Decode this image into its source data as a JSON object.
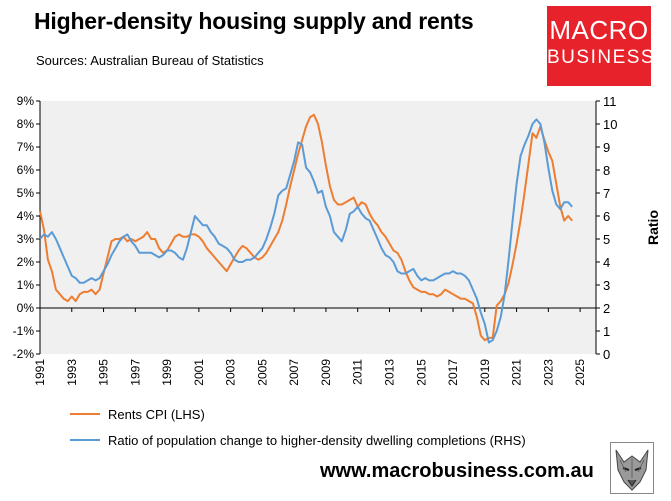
{
  "header": {
    "title": "Higher-density housing supply and rents",
    "subtitle": "Sources: Australian Bureau of Statistics"
  },
  "logo": {
    "line1": "MACRO",
    "line2": "BUSINESS",
    "color": "#e8222b"
  },
  "footer": {
    "url": "www.macrobusiness.com.au"
  },
  "chart_data": {
    "type": "line",
    "title": "Higher-density housing supply and rents",
    "xlabel": "",
    "ylabel_left": "",
    "ylabel_right": "Ratio",
    "xlim": [
      1991,
      2026
    ],
    "ylim_left": [
      -2,
      9
    ],
    "ylim_right": [
      0,
      11
    ],
    "x_ticks": [
      1991,
      1993,
      1995,
      1997,
      1999,
      2001,
      2003,
      2005,
      2007,
      2009,
      2011,
      2013,
      2015,
      2017,
      2019,
      2021,
      2023,
      2025
    ],
    "y_ticks_left": [
      "-2%",
      "-1%",
      "0%",
      "1%",
      "2%",
      "3%",
      "4%",
      "5%",
      "6%",
      "7%",
      "8%",
      "9%"
    ],
    "y_ticks_right": [
      "0",
      "1",
      "2",
      "3",
      "4",
      "5",
      "6",
      "7",
      "8",
      "9",
      "10",
      "11"
    ],
    "grid": "off",
    "legend_position": "bottom",
    "plot_background": "#f0f0f0",
    "series": [
      {
        "name": "Rents CPI (LHS)",
        "axis": "left",
        "color": "#ed7d31",
        "points": [
          [
            1991.0,
            4.2
          ],
          [
            1991.25,
            3.4
          ],
          [
            1991.5,
            2.1
          ],
          [
            1991.75,
            1.6
          ],
          [
            1992.0,
            0.8
          ],
          [
            1992.25,
            0.6
          ],
          [
            1992.5,
            0.4
          ],
          [
            1992.75,
            0.3
          ],
          [
            1993.0,
            0.5
          ],
          [
            1993.25,
            0.3
          ],
          [
            1993.5,
            0.6
          ],
          [
            1993.75,
            0.7
          ],
          [
            1994.0,
            0.7
          ],
          [
            1994.25,
            0.8
          ],
          [
            1994.5,
            0.6
          ],
          [
            1994.75,
            0.8
          ],
          [
            1995.0,
            1.5
          ],
          [
            1995.25,
            2.2
          ],
          [
            1995.5,
            2.9
          ],
          [
            1995.75,
            3.0
          ],
          [
            1996.0,
            3.0
          ],
          [
            1996.25,
            3.1
          ],
          [
            1996.5,
            2.9
          ],
          [
            1996.75,
            3.0
          ],
          [
            1997.0,
            2.9
          ],
          [
            1997.25,
            3.0
          ],
          [
            1997.5,
            3.1
          ],
          [
            1997.75,
            3.3
          ],
          [
            1998.0,
            3.0
          ],
          [
            1998.25,
            3.0
          ],
          [
            1998.5,
            2.6
          ],
          [
            1998.75,
            2.4
          ],
          [
            1999.0,
            2.5
          ],
          [
            1999.25,
            2.8
          ],
          [
            1999.5,
            3.1
          ],
          [
            1999.75,
            3.2
          ],
          [
            2000.0,
            3.1
          ],
          [
            2000.25,
            3.1
          ],
          [
            2000.5,
            3.2
          ],
          [
            2000.75,
            3.2
          ],
          [
            2001.0,
            3.1
          ],
          [
            2001.25,
            2.9
          ],
          [
            2001.5,
            2.6
          ],
          [
            2001.75,
            2.4
          ],
          [
            2002.0,
            2.2
          ],
          [
            2002.25,
            2.0
          ],
          [
            2002.5,
            1.8
          ],
          [
            2002.75,
            1.6
          ],
          [
            2003.0,
            1.9
          ],
          [
            2003.25,
            2.2
          ],
          [
            2003.5,
            2.5
          ],
          [
            2003.75,
            2.7
          ],
          [
            2004.0,
            2.6
          ],
          [
            2004.25,
            2.4
          ],
          [
            2004.5,
            2.2
          ],
          [
            2004.75,
            2.1
          ],
          [
            2005.0,
            2.2
          ],
          [
            2005.25,
            2.4
          ],
          [
            2005.5,
            2.7
          ],
          [
            2005.75,
            3.0
          ],
          [
            2006.0,
            3.3
          ],
          [
            2006.25,
            3.8
          ],
          [
            2006.5,
            4.5
          ],
          [
            2006.75,
            5.3
          ],
          [
            2007.0,
            6.0
          ],
          [
            2007.25,
            6.7
          ],
          [
            2007.5,
            7.3
          ],
          [
            2007.75,
            7.9
          ],
          [
            2008.0,
            8.3
          ],
          [
            2008.25,
            8.4
          ],
          [
            2008.5,
            8.0
          ],
          [
            2008.75,
            7.2
          ],
          [
            2009.0,
            6.2
          ],
          [
            2009.25,
            5.3
          ],
          [
            2009.5,
            4.7
          ],
          [
            2009.75,
            4.5
          ],
          [
            2010.0,
            4.5
          ],
          [
            2010.25,
            4.6
          ],
          [
            2010.5,
            4.7
          ],
          [
            2010.75,
            4.8
          ],
          [
            2011.0,
            4.4
          ],
          [
            2011.25,
            4.6
          ],
          [
            2011.5,
            4.5
          ],
          [
            2011.75,
            4.1
          ],
          [
            2012.0,
            3.8
          ],
          [
            2012.25,
            3.6
          ],
          [
            2012.5,
            3.3
          ],
          [
            2012.75,
            3.1
          ],
          [
            2013.0,
            2.8
          ],
          [
            2013.25,
            2.5
          ],
          [
            2013.5,
            2.4
          ],
          [
            2013.75,
            2.1
          ],
          [
            2014.0,
            1.6
          ],
          [
            2014.25,
            1.2
          ],
          [
            2014.5,
            0.9
          ],
          [
            2014.75,
            0.8
          ],
          [
            2015.0,
            0.7
          ],
          [
            2015.25,
            0.7
          ],
          [
            2015.5,
            0.6
          ],
          [
            2015.75,
            0.6
          ],
          [
            2016.0,
            0.5
          ],
          [
            2016.25,
            0.6
          ],
          [
            2016.5,
            0.8
          ],
          [
            2016.75,
            0.7
          ],
          [
            2017.0,
            0.6
          ],
          [
            2017.25,
            0.5
          ],
          [
            2017.5,
            0.4
          ],
          [
            2017.75,
            0.4
          ],
          [
            2018.0,
            0.3
          ],
          [
            2018.25,
            0.2
          ],
          [
            2018.5,
            -0.4
          ],
          [
            2018.75,
            -1.2
          ],
          [
            2019.0,
            -1.4
          ],
          [
            2019.25,
            -1.3
          ],
          [
            2019.5,
            -1.3
          ],
          [
            2019.75,
            0.1
          ],
          [
            2020.0,
            0.3
          ],
          [
            2020.25,
            0.6
          ],
          [
            2020.5,
            1.1
          ],
          [
            2020.75,
            1.9
          ],
          [
            2021.0,
            2.8
          ],
          [
            2021.25,
            3.8
          ],
          [
            2021.5,
            5.0
          ],
          [
            2021.75,
            6.3
          ],
          [
            2022.0,
            7.6
          ],
          [
            2022.25,
            7.4
          ],
          [
            2022.5,
            7.9
          ],
          [
            2022.75,
            7.3
          ],
          [
            2023.0,
            6.8
          ],
          [
            2023.25,
            6.4
          ],
          [
            2023.5,
            5.4
          ],
          [
            2023.75,
            4.4
          ],
          [
            2024.0,
            3.8
          ],
          [
            2024.25,
            4.0
          ],
          [
            2024.5,
            3.8
          ]
        ]
      },
      {
        "name": "Ratio of population change to higher-density dwelling completions (RHS)",
        "axis": "right",
        "color": "#5b9bd5",
        "points": [
          [
            1991.0,
            5.0
          ],
          [
            1991.25,
            5.2
          ],
          [
            1991.5,
            5.1
          ],
          [
            1991.75,
            5.3
          ],
          [
            1992.0,
            5.0
          ],
          [
            1992.25,
            4.6
          ],
          [
            1992.5,
            4.2
          ],
          [
            1992.75,
            3.8
          ],
          [
            1993.0,
            3.4
          ],
          [
            1993.25,
            3.3
          ],
          [
            1993.5,
            3.1
          ],
          [
            1993.75,
            3.1
          ],
          [
            1994.0,
            3.2
          ],
          [
            1994.25,
            3.3
          ],
          [
            1994.5,
            3.2
          ],
          [
            1994.75,
            3.3
          ],
          [
            1995.0,
            3.6
          ],
          [
            1995.25,
            3.9
          ],
          [
            1995.5,
            4.3
          ],
          [
            1995.75,
            4.6
          ],
          [
            1996.0,
            4.9
          ],
          [
            1996.25,
            5.1
          ],
          [
            1996.5,
            5.2
          ],
          [
            1996.75,
            4.9
          ],
          [
            1997.0,
            4.7
          ],
          [
            1997.25,
            4.4
          ],
          [
            1997.5,
            4.4
          ],
          [
            1997.75,
            4.4
          ],
          [
            1998.0,
            4.4
          ],
          [
            1998.25,
            4.3
          ],
          [
            1998.5,
            4.2
          ],
          [
            1998.75,
            4.3
          ],
          [
            1999.0,
            4.5
          ],
          [
            1999.25,
            4.5
          ],
          [
            1999.5,
            4.4
          ],
          [
            1999.75,
            4.2
          ],
          [
            2000.0,
            4.1
          ],
          [
            2000.25,
            4.6
          ],
          [
            2000.5,
            5.3
          ],
          [
            2000.75,
            6.0
          ],
          [
            2001.0,
            5.8
          ],
          [
            2001.25,
            5.6
          ],
          [
            2001.5,
            5.6
          ],
          [
            2001.75,
            5.3
          ],
          [
            2002.0,
            5.1
          ],
          [
            2002.25,
            4.8
          ],
          [
            2002.5,
            4.7
          ],
          [
            2002.75,
            4.6
          ],
          [
            2003.0,
            4.4
          ],
          [
            2003.25,
            4.1
          ],
          [
            2003.5,
            4.0
          ],
          [
            2003.75,
            4.0
          ],
          [
            2004.0,
            4.1
          ],
          [
            2004.25,
            4.1
          ],
          [
            2004.5,
            4.2
          ],
          [
            2004.75,
            4.4
          ],
          [
            2005.0,
            4.6
          ],
          [
            2005.25,
            5.0
          ],
          [
            2005.5,
            5.5
          ],
          [
            2005.75,
            6.1
          ],
          [
            2006.0,
            6.9
          ],
          [
            2006.25,
            7.1
          ],
          [
            2006.5,
            7.2
          ],
          [
            2006.75,
            7.8
          ],
          [
            2007.0,
            8.4
          ],
          [
            2007.25,
            9.2
          ],
          [
            2007.5,
            9.1
          ],
          [
            2007.75,
            8.1
          ],
          [
            2008.0,
            7.9
          ],
          [
            2008.25,
            7.5
          ],
          [
            2008.5,
            7.0
          ],
          [
            2008.75,
            7.1
          ],
          [
            2009.0,
            6.4
          ],
          [
            2009.25,
            6.0
          ],
          [
            2009.5,
            5.3
          ],
          [
            2009.75,
            5.1
          ],
          [
            2010.0,
            4.9
          ],
          [
            2010.25,
            5.4
          ],
          [
            2010.5,
            6.1
          ],
          [
            2010.75,
            6.2
          ],
          [
            2011.0,
            6.4
          ],
          [
            2011.25,
            6.1
          ],
          [
            2011.5,
            5.9
          ],
          [
            2011.75,
            5.8
          ],
          [
            2012.0,
            5.4
          ],
          [
            2012.25,
            5.0
          ],
          [
            2012.5,
            4.6
          ],
          [
            2012.75,
            4.3
          ],
          [
            2013.0,
            4.2
          ],
          [
            2013.25,
            4.0
          ],
          [
            2013.5,
            3.6
          ],
          [
            2013.75,
            3.5
          ],
          [
            2014.0,
            3.5
          ],
          [
            2014.25,
            3.6
          ],
          [
            2014.5,
            3.7
          ],
          [
            2014.75,
            3.4
          ],
          [
            2015.0,
            3.2
          ],
          [
            2015.25,
            3.3
          ],
          [
            2015.5,
            3.2
          ],
          [
            2015.75,
            3.2
          ],
          [
            2016.0,
            3.3
          ],
          [
            2016.25,
            3.4
          ],
          [
            2016.5,
            3.5
          ],
          [
            2016.75,
            3.5
          ],
          [
            2017.0,
            3.6
          ],
          [
            2017.25,
            3.5
          ],
          [
            2017.5,
            3.5
          ],
          [
            2017.75,
            3.4
          ],
          [
            2018.0,
            3.2
          ],
          [
            2018.25,
            2.8
          ],
          [
            2018.5,
            2.4
          ],
          [
            2018.75,
            1.8
          ],
          [
            2019.0,
            1.3
          ],
          [
            2019.25,
            0.5
          ],
          [
            2019.5,
            0.6
          ],
          [
            2019.75,
            1.0
          ],
          [
            2020.0,
            1.6
          ],
          [
            2020.25,
            2.6
          ],
          [
            2020.5,
            4.1
          ],
          [
            2020.75,
            5.8
          ],
          [
            2021.0,
            7.4
          ],
          [
            2021.25,
            8.6
          ],
          [
            2021.5,
            9.1
          ],
          [
            2021.75,
            9.5
          ],
          [
            2022.0,
            10.0
          ],
          [
            2022.25,
            10.2
          ],
          [
            2022.5,
            10.0
          ],
          [
            2022.75,
            9.2
          ],
          [
            2023.0,
            8.1
          ],
          [
            2023.25,
            7.1
          ],
          [
            2023.5,
            6.5
          ],
          [
            2023.75,
            6.3
          ],
          [
            2024.0,
            6.6
          ],
          [
            2024.25,
            6.6
          ],
          [
            2024.5,
            6.4
          ]
        ]
      }
    ]
  }
}
